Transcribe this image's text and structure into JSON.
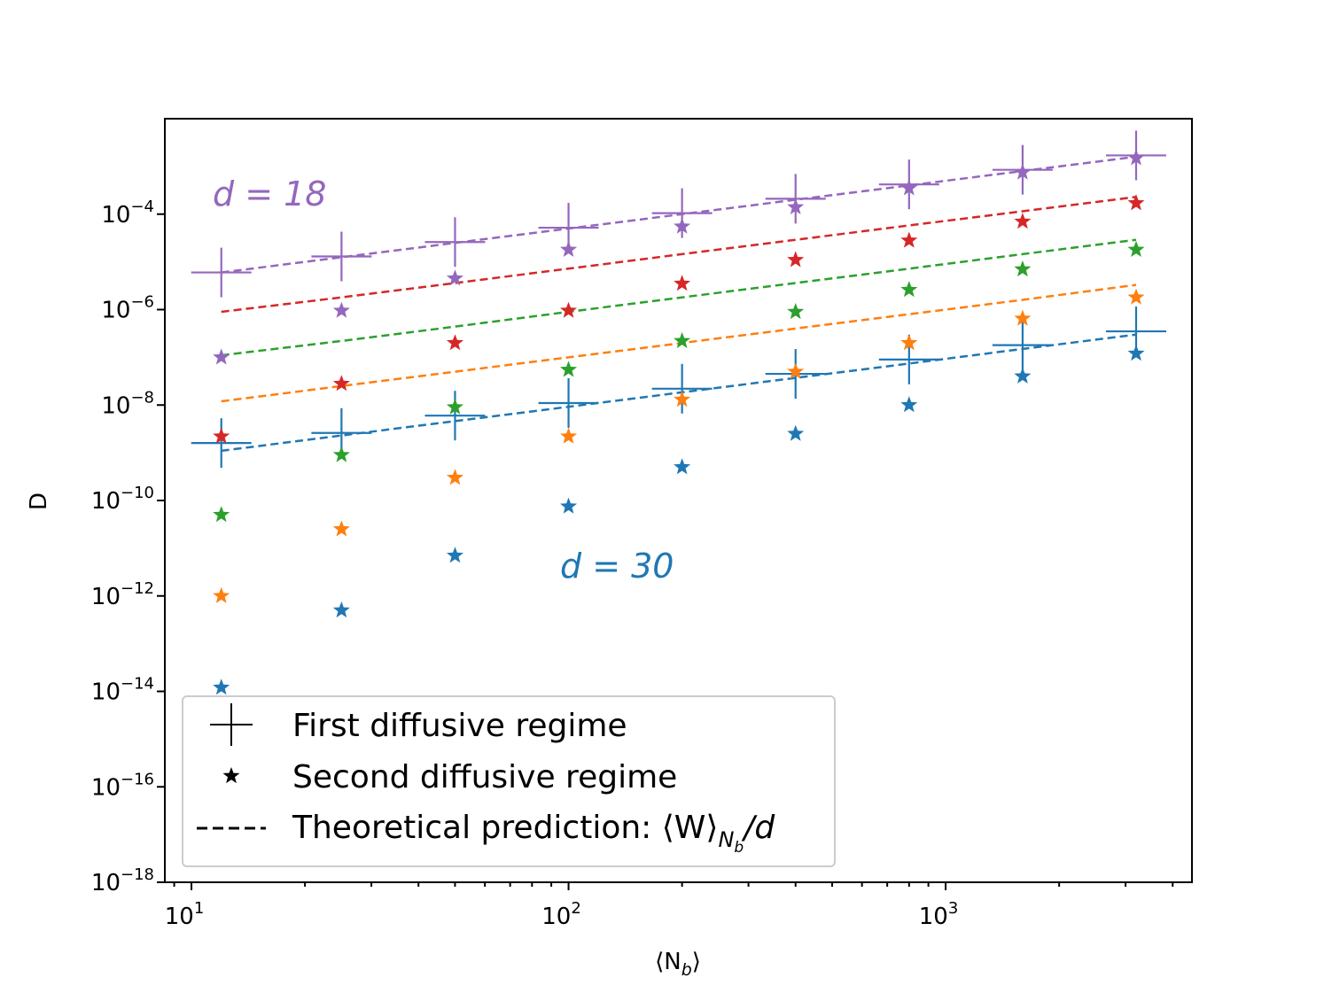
{
  "chart_data": {
    "type": "scatter",
    "xscale": "log",
    "yscale": "log",
    "xlabel": "⟨N",
    "xlabel_sub": "b",
    "xlabel_close": "⟩",
    "ylabel": "D",
    "xlim": [
      8.5,
      4500
    ],
    "ylim": [
      1e-18,
      0.01
    ],
    "x": [
      12,
      25,
      50,
      100,
      200,
      400,
      800,
      1600,
      3200
    ],
    "x_tick_labels": [
      {
        "base": "10",
        "exp": "1",
        "value": 10
      },
      {
        "base": "10",
        "exp": "2",
        "value": 100
      },
      {
        "base": "10",
        "exp": "3",
        "value": 1000
      }
    ],
    "y_tick_labels": [
      {
        "base": "10",
        "exp": "−4",
        "value": -4
      },
      {
        "base": "10",
        "exp": "−6",
        "value": -6
      },
      {
        "base": "10",
        "exp": "−8",
        "value": -8
      },
      {
        "base": "10",
        "exp": "−10",
        "value": -10
      },
      {
        "base": "10",
        "exp": "−12",
        "value": -12
      },
      {
        "base": "10",
        "exp": "−14",
        "value": -14
      },
      {
        "base": "10",
        "exp": "−16",
        "value": -16
      },
      {
        "base": "10",
        "exp": "−18",
        "value": -18
      }
    ],
    "series": [
      {
        "name": "d=30",
        "color": "#1f77b4",
        "second": [
          1.2e-14,
          5e-13,
          7e-12,
          7.5e-11,
          5e-10,
          2.5e-09,
          1e-08,
          4e-08,
          1.2e-07
        ],
        "theory": [
          1.1e-09,
          2.3e-09,
          4.6e-09,
          9.2e-09,
          1.85e-08,
          3.7e-08,
          7.4e-08,
          1.5e-07,
          3e-07
        ],
        "first": [
          1.6e-09,
          2.6e-09,
          6e-09,
          1.1e-08,
          2.2e-08,
          4.5e-08,
          9e-08,
          1.8e-07,
          3.5e-07
        ]
      },
      {
        "name": "orange",
        "color": "#ff7f0e",
        "second": [
          1e-12,
          2.5e-11,
          3e-10,
          2.2e-09,
          1.3e-08,
          5e-08,
          2e-07,
          6.5e-07,
          1.8e-06
        ],
        "theory": [
          1.2e-08,
          2.5e-08,
          5e-08,
          1e-07,
          2e-07,
          4e-07,
          8e-07,
          1.6e-06,
          3.3e-06
        ]
      },
      {
        "name": "green",
        "color": "#2ca02c",
        "second": [
          5e-11,
          9e-10,
          9e-09,
          5.5e-08,
          2.2e-07,
          9e-07,
          2.6e-06,
          7e-06,
          1.8e-05
        ],
        "theory": [
          1.1e-07,
          2.2e-07,
          4.4e-07,
          9e-07,
          1.8e-06,
          3.6e-06,
          7.2e-06,
          1.45e-05,
          2.9e-05
        ]
      },
      {
        "name": "red",
        "color": "#d62728",
        "second": [
          2.2e-09,
          2.8e-08,
          2e-07,
          9.5e-07,
          3.5e-06,
          1.1e-05,
          2.8e-05,
          7e-05,
          0.00017
        ],
        "theory": [
          9e-07,
          1.8e-06,
          3.6e-06,
          7.2e-06,
          1.45e-05,
          2.9e-05,
          5.8e-05,
          0.000115,
          0.00023
        ]
      },
      {
        "name": "d=18",
        "color": "#9467bd",
        "second": [
          1e-07,
          9.5e-07,
          4.5e-06,
          1.8e-05,
          5.5e-05,
          0.00014,
          0.00035,
          0.00075,
          0.0015
        ],
        "theory": [
          6e-06,
          1.25e-05,
          2.5e-05,
          5e-05,
          0.0001,
          0.0002,
          0.0004,
          0.0008,
          0.0016
        ],
        "first": [
          6e-06,
          1.3e-05,
          2.6e-05,
          5.2e-05,
          0.000105,
          0.00021,
          0.00042,
          0.00085,
          0.0017
        ]
      }
    ],
    "annotations": [
      {
        "text": "d = 18",
        "color": "#9467bd"
      },
      {
        "text": "d = 30",
        "color": "#1f77b4"
      }
    ],
    "legend": {
      "position": "lower-left",
      "entries": [
        {
          "label": "First diffusive regime",
          "marker": "plus"
        },
        {
          "label": "Second diffusive regime",
          "marker": "star"
        },
        {
          "label": "Theoretical prediction: ⟨W⟩",
          "sub": "N",
          "subsub": "b",
          "tail": "/d",
          "marker": "dashed"
        }
      ]
    }
  }
}
